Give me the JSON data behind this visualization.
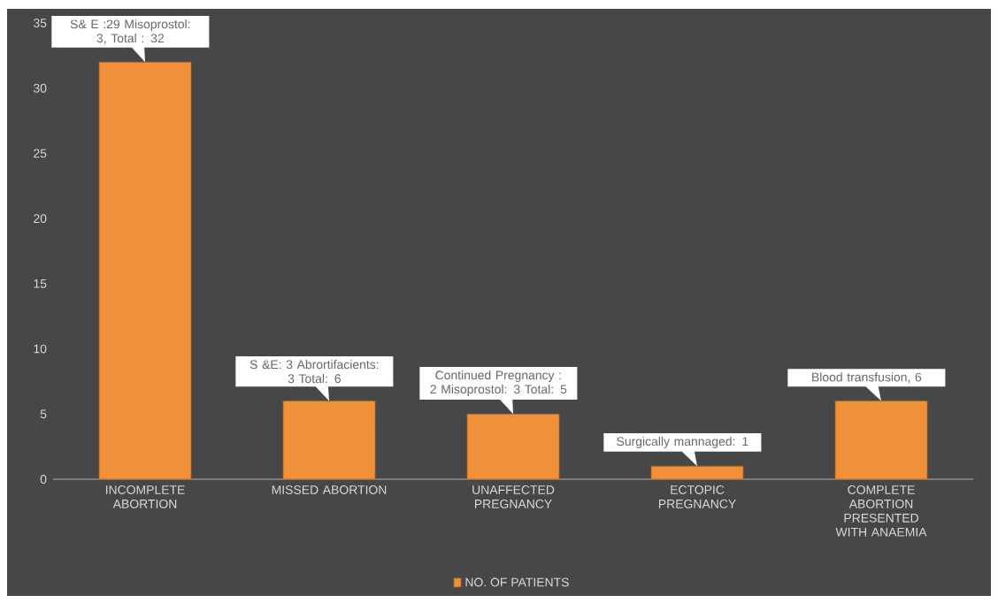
{
  "chart_data": {
    "type": "bar",
    "categories": [
      "INCOMPLETE ABORTION",
      "MISSED ABORTION",
      "UNAFFECTED PREGNANCY",
      "ECTOPIC PREGNANCY",
      "COMPLETE ABORTION PRESENTED WITH ANAEMIA"
    ],
    "series": [
      {
        "name": "NO. OF PATIENTS",
        "color": "#f0913a",
        "values": [
          32,
          6,
          5,
          1,
          6
        ]
      }
    ],
    "ylim": [
      0,
      35
    ],
    "yticks": [
      0,
      5,
      10,
      15,
      20,
      25,
      30,
      35
    ],
    "grid": false,
    "legend": "bottom",
    "annotations": [
      {
        "text": "S& E :29 Misoprostol: 3, Total : 32",
        "x": "INCOMPLETE ABORTION",
        "y": 32
      },
      {
        "text": "S &E: 3 Abrortifacients: 3 Total: 6",
        "x": "MISSED ABORTION",
        "y": 6
      },
      {
        "text": "Continued Pregnancy : 2 Misoprostol: 3 Total: 5",
        "x": "UNAFFECTED PREGNANCY",
        "y": 5
      },
      {
        "text": "Surgically mannaged: 1",
        "x": "ECTOPIC PREGNANCY",
        "y": 1
      },
      {
        "text": "Blood transfusion, 6",
        "x": "COMPLETE ABORTION PRESENTED WITH ANAEMIA",
        "y": 6
      }
    ]
  }
}
